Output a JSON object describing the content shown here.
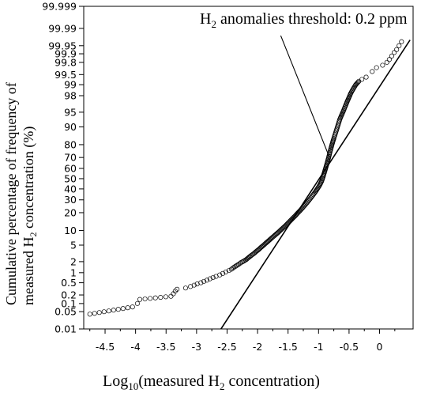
{
  "chart_data": {
    "type": "scatter",
    "title": "",
    "annotation": {
      "text_main": "H",
      "text_sub": "2",
      "text_rest": " anomalies threshold: 0.2 ppm"
    },
    "xlabel": {
      "pre": "Log",
      "sub": "10",
      "mid": "(measured H",
      "sub2": "2",
      "post": " concentration)"
    },
    "ylabel": {
      "line1": "Cumulative percentage of frequency of",
      "line2_pre": "measured H",
      "line2_sub": "2",
      "line2_post": " concentration (%)"
    },
    "x_scale": "linear",
    "y_scale": "probability (normal quantile)",
    "xlim": [
      -4.85,
      0.55
    ],
    "ylim_percent": [
      0.01,
      99.999
    ],
    "x_ticks": [
      {
        "value": -4.5,
        "label": "-4.5"
      },
      {
        "value": -4,
        "label": "-4"
      },
      {
        "value": -3.5,
        "label": "-3.5"
      },
      {
        "value": -3,
        "label": "-3"
      },
      {
        "value": -2.5,
        "label": "-2.5"
      },
      {
        "value": -2,
        "label": "-2"
      },
      {
        "value": -1.5,
        "label": "-1.5"
      },
      {
        "value": -1,
        "label": "-1"
      },
      {
        "value": -0.5,
        "label": "-0.5"
      },
      {
        "value": 0,
        "label": "0"
      }
    ],
    "y_ticks": [
      {
        "value": 0.01,
        "label": "0.01"
      },
      {
        "value": 0.05,
        "label": "0.05"
      },
      {
        "value": 0.1,
        "label": "0.1"
      },
      {
        "value": 0.2,
        "label": "0.2"
      },
      {
        "value": 0.5,
        "label": "0.5"
      },
      {
        "value": 1,
        "label": "1"
      },
      {
        "value": 2,
        "label": "2"
      },
      {
        "value": 5,
        "label": "5"
      },
      {
        "value": 10,
        "label": "10"
      },
      {
        "value": 20,
        "label": "20"
      },
      {
        "value": 30,
        "label": "30"
      },
      {
        "value": 40,
        "label": "40"
      },
      {
        "value": 50,
        "label": "50"
      },
      {
        "value": 60,
        "label": "60"
      },
      {
        "value": 70,
        "label": "70"
      },
      {
        "value": 80,
        "label": "80"
      },
      {
        "value": 90,
        "label": "90"
      },
      {
        "value": 95,
        "label": "95"
      },
      {
        "value": 98,
        "label": "98"
      },
      {
        "value": 99,
        "label": "99"
      },
      {
        "value": 99.5,
        "label": "99.5"
      },
      {
        "value": 99.8,
        "label": "99.8"
      },
      {
        "value": 99.9,
        "label": "99.9"
      },
      {
        "value": 99.95,
        "label": "99.95"
      },
      {
        "value": 99.99,
        "label": "99.99"
      },
      {
        "value": 99.999,
        "label": "99.999"
      }
    ],
    "grid": false,
    "legend": "none",
    "series": [
      {
        "values_x_percent": [
          [
            -4.75,
            0.04
          ],
          [
            -4.05,
            0.075
          ],
          [
            -3.97,
            0.1
          ],
          [
            -3.93,
            0.14
          ],
          [
            -3.42,
            0.18
          ],
          [
            -3.38,
            0.22
          ],
          [
            -3.35,
            0.27
          ],
          [
            -3.32,
            0.31
          ],
          [
            -3.18,
            0.34
          ],
          [
            -3.1,
            0.38
          ],
          [
            -3.04,
            0.42
          ],
          [
            -2.99,
            0.46
          ],
          [
            -2.93,
            0.5
          ],
          [
            -2.88,
            0.55
          ],
          [
            -2.83,
            0.6
          ],
          [
            -2.78,
            0.66
          ],
          [
            -2.73,
            0.72
          ],
          [
            -2.68,
            0.78
          ],
          [
            -2.62,
            0.86
          ],
          [
            -2.57,
            0.95
          ],
          [
            -2.52,
            1.05
          ],
          [
            -2.47,
            1.15
          ],
          [
            -2.43,
            1.25
          ],
          [
            -2.39,
            1.4
          ],
          [
            -2.35,
            1.55
          ],
          [
            -2.31,
            1.7
          ],
          [
            -2.27,
            1.9
          ],
          [
            -2.23,
            2.05
          ],
          [
            -2.18,
            2.3
          ],
          [
            -2.14,
            2.6
          ],
          [
            -2.1,
            2.9
          ],
          [
            -2.06,
            3.2
          ],
          [
            -2.02,
            3.6
          ],
          [
            -1.98,
            4.0
          ],
          [
            -1.94,
            4.5
          ],
          [
            -1.9,
            5.0
          ],
          [
            -1.86,
            5.6
          ],
          [
            -1.82,
            6.2
          ],
          [
            -1.78,
            6.9
          ],
          [
            -1.74,
            7.6
          ],
          [
            -1.7,
            8.4
          ],
          [
            -1.66,
            9.2
          ],
          [
            -1.62,
            10.2
          ],
          [
            -1.58,
            11.2
          ],
          [
            -1.54,
            12.3
          ],
          [
            -1.5,
            13.6
          ],
          [
            -1.46,
            15.0
          ],
          [
            -1.42,
            16.5
          ],
          [
            -1.38,
            18.0
          ],
          [
            -1.34,
            19.8
          ],
          [
            -1.3,
            21.6
          ],
          [
            -1.26,
            23.6
          ],
          [
            -1.22,
            25.8
          ],
          [
            -1.18,
            28.2
          ],
          [
            -1.14,
            30.8
          ],
          [
            -1.1,
            33.6
          ],
          [
            -1.06,
            36.6
          ],
          [
            -1.02,
            40.0
          ],
          [
            -0.98,
            43.8
          ],
          [
            -0.95,
            47.5
          ],
          [
            -0.93,
            51.0
          ],
          [
            -0.91,
            55.0
          ],
          [
            -0.89,
            59.0
          ],
          [
            -0.87,
            63.0
          ],
          [
            -0.85,
            67.0
          ],
          [
            -0.83,
            71.0
          ],
          [
            -0.81,
            75.0
          ],
          [
            -0.79,
            78.5
          ],
          [
            -0.77,
            81.5
          ],
          [
            -0.75,
            84.0
          ],
          [
            -0.73,
            86.2
          ],
          [
            -0.71,
            88.2
          ],
          [
            -0.69,
            90.0
          ],
          [
            -0.67,
            91.6
          ],
          [
            -0.65,
            93.0
          ],
          [
            -0.62,
            94.3
          ],
          [
            -0.59,
            95.4
          ],
          [
            -0.56,
            96.4
          ],
          [
            -0.53,
            97.2
          ],
          [
            -0.5,
            97.8
          ],
          [
            -0.47,
            98.3
          ],
          [
            -0.43,
            98.7
          ],
          [
            -0.39,
            99.0
          ],
          [
            -0.34,
            99.2
          ],
          [
            -0.29,
            99.3
          ],
          [
            -0.22,
            99.4
          ],
          [
            -0.12,
            99.6
          ],
          [
            -0.05,
            99.7
          ],
          [
            0.05,
            99.75
          ],
          [
            0.12,
            99.8
          ],
          [
            0.16,
            99.84
          ],
          [
            0.2,
            99.88
          ],
          [
            0.24,
            99.91
          ],
          [
            0.28,
            99.93
          ],
          [
            0.32,
            99.95
          ],
          [
            0.36,
            99.965
          ]
        ]
      }
    ],
    "lines": [
      {
        "from": [
          -2.6,
          0.01
        ],
        "to": [
          0.5,
          99.97
        ]
      },
      {
        "from": [
          -1.62,
          99.98
        ],
        "to": [
          -0.82,
          70
        ]
      }
    ]
  }
}
